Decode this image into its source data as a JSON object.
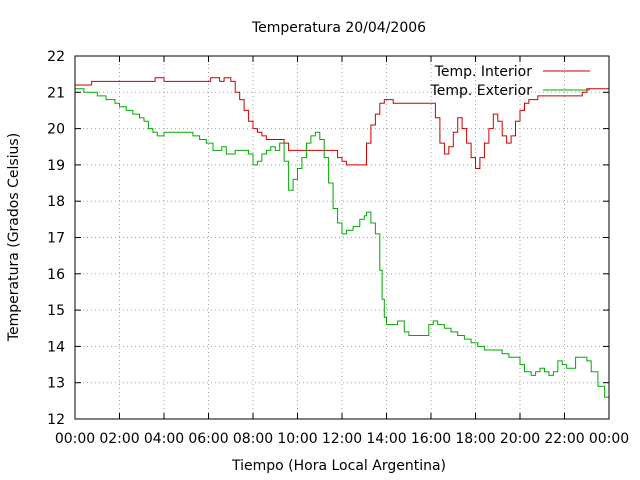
{
  "chart_data": {
    "type": "line",
    "title": "Temperatura 20/04/2006",
    "xlabel": "Tiempo (Hora Local Argentina)",
    "ylabel": "Temperatura (Grados Celsius)",
    "xlim": [
      0,
      24
    ],
    "ylim": [
      12,
      22
    ],
    "grid": true,
    "legend_position": "top-right",
    "x_tick_labels": [
      "00:00",
      "02:00",
      "04:00",
      "06:00",
      "08:00",
      "10:00",
      "12:00",
      "14:00",
      "16:00",
      "18:00",
      "20:00",
      "22:00",
      "00:00"
    ],
    "x_tick_values": [
      0,
      2,
      4,
      6,
      8,
      10,
      12,
      14,
      16,
      18,
      20,
      22,
      24
    ],
    "y_tick_values": [
      12,
      13,
      14,
      15,
      16,
      17,
      18,
      19,
      20,
      21,
      22
    ],
    "series": [
      {
        "name": "Temp. Interior",
        "color": "#cc0000",
        "x": [
          0,
          0.7,
          0.75,
          3.5,
          3.6,
          3.9,
          4.0,
          6.0,
          6.1,
          6.4,
          6.5,
          6.7,
          6.8,
          7.0,
          7.2,
          7.4,
          7.6,
          7.8,
          8.0,
          8.2,
          8.4,
          8.6,
          9.0,
          9.4,
          9.6,
          10.4,
          10.6,
          11.6,
          11.8,
          12.0,
          12.2,
          12.6,
          12.9,
          13.1,
          13.3,
          13.5,
          13.7,
          13.9,
          14.1,
          14.3,
          15.0,
          15.5,
          16.0,
          16.2,
          16.4,
          16.6,
          16.8,
          17.0,
          17.2,
          17.4,
          17.6,
          17.8,
          18.0,
          18.2,
          18.4,
          18.6,
          18.8,
          19.0,
          19.2,
          19.4,
          19.6,
          19.8,
          20.0,
          20.2,
          20.4,
          20.6,
          20.8,
          21.0,
          21.4,
          22.0,
          22.6,
          22.8,
          23.0,
          23.5,
          24.0
        ],
        "y": [
          21.2,
          21.2,
          21.3,
          21.3,
          21.4,
          21.4,
          21.3,
          21.3,
          21.4,
          21.4,
          21.3,
          21.4,
          21.4,
          21.3,
          21.0,
          20.8,
          20.5,
          20.2,
          20.0,
          19.9,
          19.8,
          19.7,
          19.7,
          19.6,
          19.4,
          19.4,
          19.4,
          19.4,
          19.2,
          19.1,
          19.0,
          19.0,
          19.0,
          19.6,
          20.1,
          20.4,
          20.7,
          20.8,
          20.8,
          20.7,
          20.7,
          20.7,
          20.7,
          20.3,
          19.6,
          19.3,
          19.5,
          19.9,
          20.3,
          20.0,
          19.6,
          19.2,
          18.9,
          19.2,
          19.6,
          20.0,
          20.4,
          20.2,
          19.8,
          19.6,
          19.8,
          20.2,
          20.5,
          20.7,
          20.8,
          20.8,
          20.9,
          20.9,
          20.9,
          20.9,
          20.9,
          21.0,
          21.1,
          21.1,
          21.1
        ]
      },
      {
        "name": "Temp. Exterior",
        "color": "#00aa00",
        "x": [
          0,
          0.4,
          0.7,
          1.0,
          1.4,
          1.8,
          2.0,
          2.3,
          2.6,
          2.9,
          3.1,
          3.3,
          3.5,
          3.7,
          3.9,
          4.0,
          4.5,
          5.0,
          5.3,
          5.6,
          5.9,
          6.2,
          6.4,
          6.6,
          6.8,
          7.0,
          7.2,
          7.4,
          7.6,
          7.8,
          8.0,
          8.2,
          8.4,
          8.6,
          8.8,
          9.0,
          9.2,
          9.4,
          9.6,
          9.8,
          10.0,
          10.2,
          10.4,
          10.6,
          10.8,
          11.0,
          11.2,
          11.4,
          11.6,
          11.8,
          12.0,
          12.2,
          12.5,
          12.8,
          13.0,
          13.1,
          13.3,
          13.5,
          13.7,
          13.8,
          13.9,
          14.0,
          14.2,
          14.5,
          14.8,
          15.0,
          15.3,
          15.6,
          15.9,
          16.1,
          16.3,
          16.6,
          16.9,
          17.2,
          17.5,
          17.8,
          18.1,
          18.4,
          18.8,
          19.2,
          19.5,
          19.8,
          20.0,
          20.2,
          20.5,
          20.7,
          20.9,
          21.1,
          21.3,
          21.5,
          21.7,
          21.9,
          22.1,
          22.5,
          22.8,
          23.0,
          23.2,
          23.5,
          23.8,
          24.0
        ],
        "y": [
          21.1,
          21.0,
          21.0,
          20.9,
          20.8,
          20.7,
          20.6,
          20.5,
          20.4,
          20.3,
          20.2,
          20.0,
          19.9,
          19.8,
          19.8,
          19.9,
          19.9,
          19.9,
          19.8,
          19.7,
          19.6,
          19.4,
          19.4,
          19.5,
          19.3,
          19.3,
          19.4,
          19.4,
          19.4,
          19.3,
          19.0,
          19.1,
          19.3,
          19.4,
          19.5,
          19.4,
          19.6,
          19.1,
          18.3,
          18.6,
          18.9,
          19.2,
          19.6,
          19.8,
          19.9,
          19.7,
          19.2,
          18.5,
          17.8,
          17.4,
          17.1,
          17.2,
          17.3,
          17.5,
          17.6,
          17.7,
          17.4,
          17.1,
          16.1,
          15.3,
          14.8,
          14.6,
          14.6,
          14.7,
          14.4,
          14.3,
          14.3,
          14.3,
          14.6,
          14.7,
          14.6,
          14.5,
          14.4,
          14.3,
          14.2,
          14.1,
          14.0,
          13.9,
          13.9,
          13.8,
          13.7,
          13.7,
          13.5,
          13.3,
          13.2,
          13.3,
          13.4,
          13.3,
          13.2,
          13.3,
          13.6,
          13.5,
          13.4,
          13.7,
          13.7,
          13.6,
          13.3,
          12.9,
          12.6,
          12.7
        ]
      }
    ]
  }
}
